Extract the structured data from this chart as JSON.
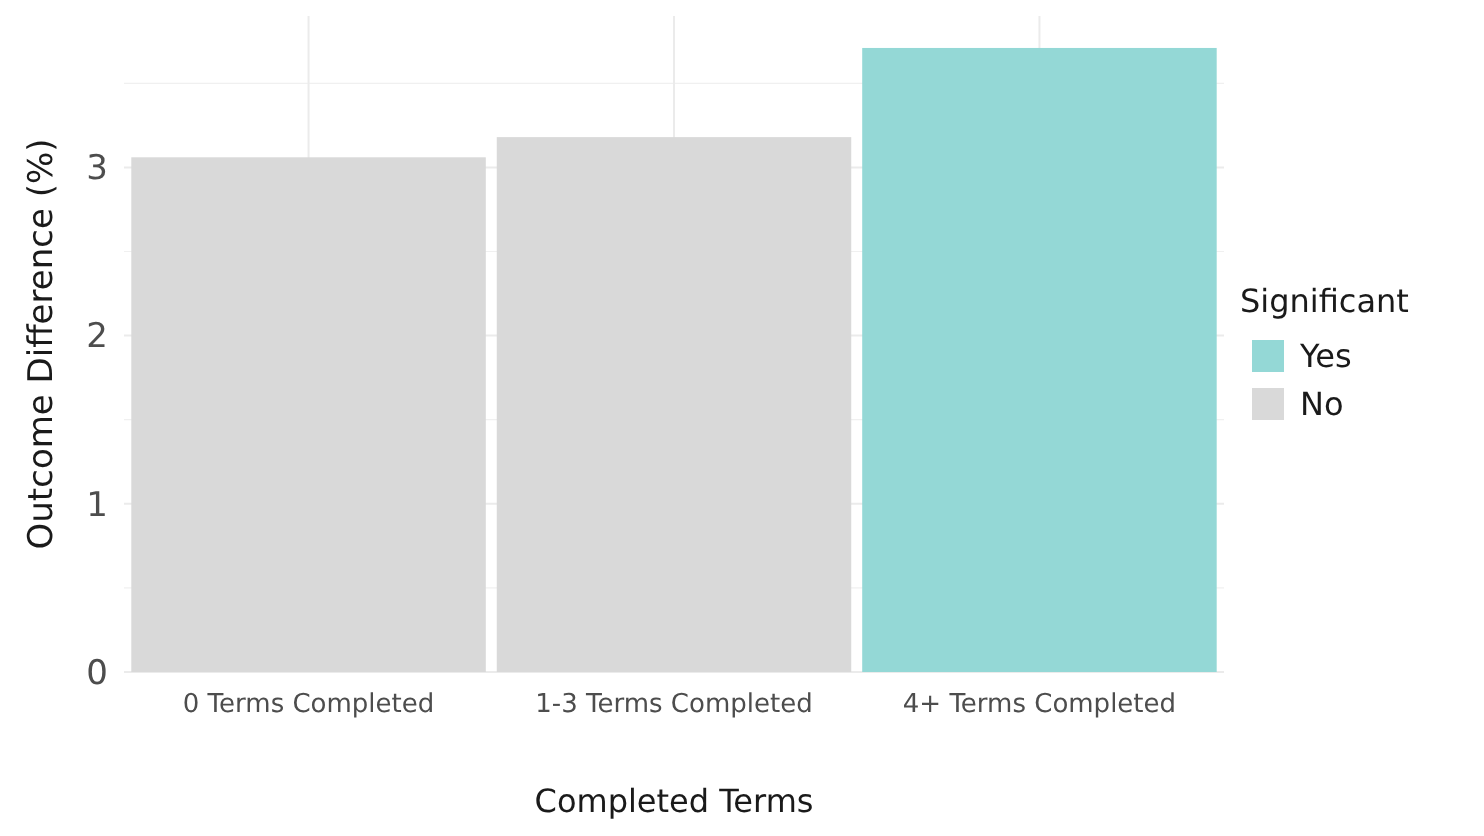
{
  "chart_data": {
    "type": "bar",
    "xlabel": "Completed Terms",
    "ylabel": "Outcome Difference (%)",
    "legend_title": "Significant",
    "categories": [
      "0 Terms Completed",
      "1-3 Terms Completed",
      "4+ Terms Completed"
    ],
    "series": [
      {
        "name": "Yes",
        "color": "#94d8d6",
        "values": [
          null,
          null,
          3.71
        ]
      },
      {
        "name": "No",
        "color": "#d9d9d9",
        "values": [
          3.06,
          3.18,
          null
        ]
      }
    ],
    "ylim": [
      0,
      3.9
    ],
    "yticks": [
      0,
      1,
      2,
      3
    ],
    "grid": true,
    "legend": "right"
  }
}
